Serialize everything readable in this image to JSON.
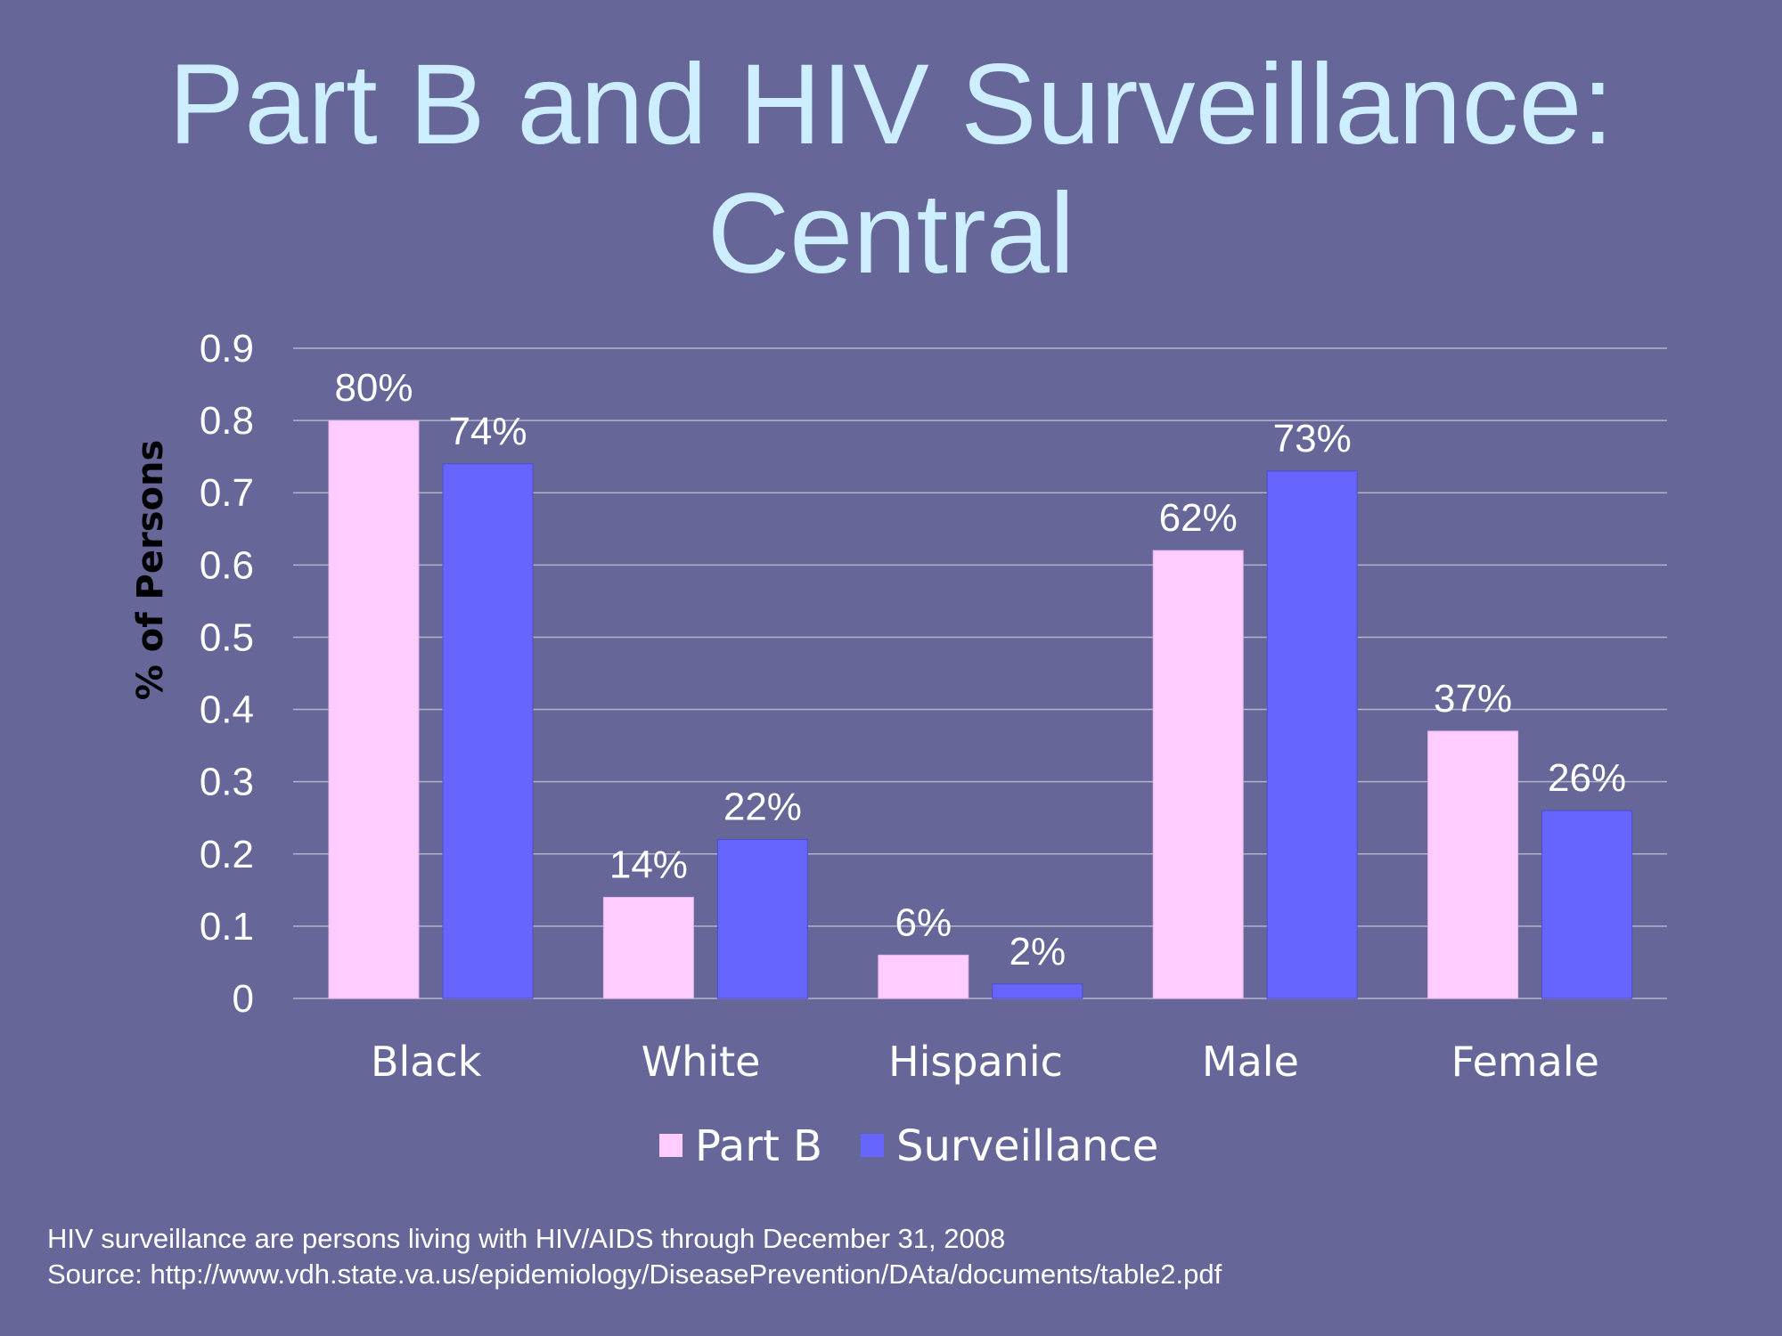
{
  "slide": {
    "title_line1": "Part B and HIV Surveillance:",
    "title_line2": "Central",
    "footnote_line1": "HIV surveillance are persons living with HIV/AIDS through  December 31, 2008",
    "footnote_line2": "Source: http://www.vdh.state.va.us/epidemiology/DiseasePrevention/DAta/documents/table2.pdf"
  },
  "colors": {
    "background": "#666699",
    "title": "#cceeff",
    "part_b": "#ffccff",
    "surveillance": "#6666ff",
    "text": "#ffffff",
    "gridline": "#b3b3cc"
  },
  "chart_data": {
    "type": "bar",
    "categories": [
      "Black",
      "White",
      "Hispanic",
      "Male",
      "Female"
    ],
    "series": [
      {
        "name": "Part B",
        "values": [
          0.8,
          0.14,
          0.06,
          0.62,
          0.37
        ],
        "labels": [
          "80%",
          "14%",
          "6%",
          "62%",
          "37%"
        ],
        "color": "#ffccff"
      },
      {
        "name": "Surveillance",
        "values": [
          0.74,
          0.22,
          0.02,
          0.73,
          0.26
        ],
        "labels": [
          "74%",
          "22%",
          "2%",
          "73%",
          "26%"
        ],
        "color": "#6666ff"
      }
    ],
    "yticks": [
      "0",
      "0.1",
      "0.2",
      "0.3",
      "0.4",
      "0.5",
      "0.6",
      "0.7",
      "0.8",
      "0.9"
    ],
    "ylabel": "% of Persons",
    "xlabel": "",
    "ylim": [
      0,
      0.9
    ],
    "grid": true,
    "legend": "bottom"
  }
}
